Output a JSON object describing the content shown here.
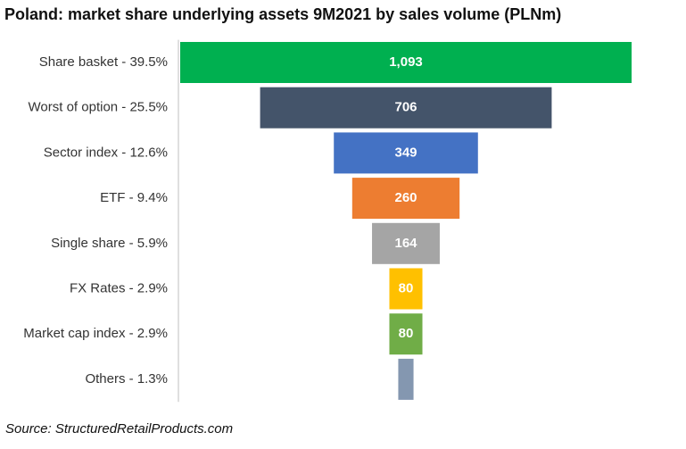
{
  "title": "Poland: market share underlying assets 9M2021 by sales volume (PLNm)",
  "source": "Source: StructuredRetailProducts.com",
  "chart_data": {
    "type": "bar",
    "style": "funnel",
    "title": "Poland: market share underlying assets 9M2021 by sales volume (PLNm)",
    "categories": [
      "Share basket - 39.5%",
      "Worst of option - 25.5%",
      "Sector index - 12.6%",
      "ETF - 9.4%",
      "Single share - 5.9%",
      "FX Rates - 2.9%",
      "Market cap index - 2.9%",
      "Others - 1.3%"
    ],
    "values": [
      1093,
      706,
      349,
      260,
      164,
      80,
      80,
      37
    ],
    "value_labels": [
      "1,093",
      "706",
      "349",
      "260",
      "164",
      "80",
      "80",
      ""
    ],
    "colors": [
      "#00b050",
      "#44546a",
      "#4472c4",
      "#ed7d31",
      "#a5a5a5",
      "#ffc000",
      "#70ad47",
      "#8497b0"
    ],
    "label_colors": [
      "#ffffff",
      "#ffffff",
      "#ffffff",
      "#ffffff",
      "#ffffff",
      "#ffffff",
      "#ffffff",
      "#ffffff"
    ],
    "xlabel": "",
    "ylabel": "",
    "axis_line_color": "#bfbfbf",
    "grid": false,
    "legend": "none"
  }
}
